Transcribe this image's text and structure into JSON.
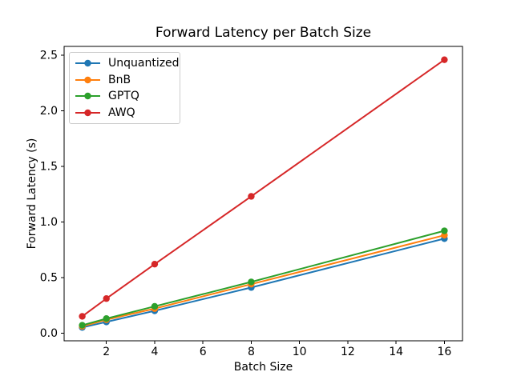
{
  "chart_data": {
    "type": "line",
    "title": "Forward Latency per Batch Size",
    "xlabel": "Batch Size",
    "ylabel": "Forward Latency (s)",
    "x": [
      1,
      2,
      4,
      8,
      16
    ],
    "series": [
      {
        "name": "Unquantized",
        "color": "#1f77b4",
        "values": [
          0.05,
          0.1,
          0.2,
          0.41,
          0.85
        ]
      },
      {
        "name": "BnB",
        "color": "#ff7f0e",
        "values": [
          0.06,
          0.12,
          0.22,
          0.44,
          0.88
        ]
      },
      {
        "name": "GPTQ",
        "color": "#2ca02c",
        "values": [
          0.07,
          0.13,
          0.24,
          0.46,
          0.92
        ]
      },
      {
        "name": "AWQ",
        "color": "#d62728",
        "values": [
          0.15,
          0.31,
          0.62,
          1.23,
          2.46
        ]
      }
    ],
    "xticks": [
      2,
      4,
      6,
      8,
      10,
      12,
      14,
      16
    ],
    "ytick_labels": [
      "0.0",
      "0.5",
      "1.0",
      "1.5",
      "2.0",
      "2.5"
    ],
    "yticks": [
      0.0,
      0.5,
      1.0,
      1.5,
      2.0,
      2.5
    ],
    "xlim": [
      0.25,
      16.75
    ],
    "ylim": [
      -0.07,
      2.58
    ],
    "grid": false,
    "legend_position": "upper left",
    "marker": "circle",
    "line_style": "solid",
    "spine_color": "#000000",
    "background_color": "#ffffff"
  }
}
